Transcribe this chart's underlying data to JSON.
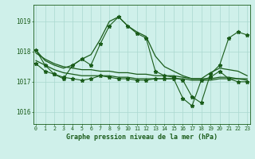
{
  "title": "Graphe pression niveau de la mer (hPa)",
  "bg_color": "#cff0ea",
  "line_color": "#1a5c1a",
  "grid_color": "#aad8d0",
  "x_labels": [
    "0",
    "1",
    "2",
    "3",
    "4",
    "5",
    "6",
    "7",
    "8",
    "9",
    "10",
    "11",
    "12",
    "13",
    "14",
    "15",
    "16",
    "17",
    "18",
    "19",
    "20",
    "21",
    "22",
    "23"
  ],
  "yticks": [
    1016,
    1017,
    1018,
    1019
  ],
  "ylim": [
    1015.6,
    1019.55
  ],
  "xlim": [
    -0.3,
    23.3
  ],
  "series_spiky": [
    1018.05,
    1017.55,
    1017.25,
    1017.1,
    1017.55,
    1017.75,
    1017.55,
    1018.25,
    1018.85,
    1019.15,
    1018.85,
    1018.6,
    1018.45,
    1017.35,
    1017.2,
    1017.15,
    1017.05,
    1016.5,
    1016.3,
    1017.25,
    1017.55,
    1018.45,
    1018.65,
    1018.55
  ],
  "series_mid": [
    1017.6,
    1017.35,
    1017.25,
    1017.15,
    1017.1,
    1017.05,
    1017.1,
    1017.2,
    1017.15,
    1017.1,
    1017.1,
    1017.05,
    1017.05,
    1017.1,
    1017.1,
    1017.1,
    1016.45,
    1016.2,
    1017.05,
    1017.15,
    1017.35,
    1017.1,
    1017.0,
    1017.0
  ],
  "series_smooth": [
    1017.7,
    1017.55,
    1017.4,
    1017.3,
    1017.25,
    1017.2,
    1017.2,
    1017.2,
    1017.2,
    1017.15,
    1017.15,
    1017.1,
    1017.1,
    1017.1,
    1017.1,
    1017.1,
    1017.1,
    1017.05,
    1017.05,
    1017.05,
    1017.1,
    1017.1,
    1017.1,
    1017.05
  ],
  "series_smooth2": [
    1017.95,
    1017.75,
    1017.6,
    1017.5,
    1017.45,
    1017.4,
    1017.4,
    1017.35,
    1017.35,
    1017.3,
    1017.3,
    1017.25,
    1017.25,
    1017.2,
    1017.2,
    1017.2,
    1017.15,
    1017.1,
    1017.1,
    1017.1,
    1017.15,
    1017.15,
    1017.1,
    1017.1
  ],
  "series_envelope": [
    1018.05,
    1017.7,
    1017.55,
    1017.45,
    1017.55,
    1017.75,
    1017.9,
    1018.4,
    1019.0,
    1019.15,
    1018.85,
    1018.65,
    1018.5,
    1017.85,
    1017.5,
    1017.35,
    1017.2,
    1017.1,
    1017.1,
    1017.3,
    1017.45,
    1017.4,
    1017.35,
    1017.2
  ]
}
